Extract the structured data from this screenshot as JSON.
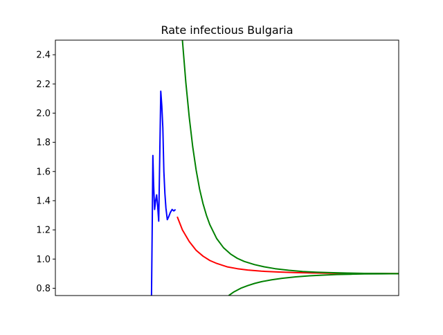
{
  "chart_data": {
    "type": "line",
    "title": "Rate infectious Bulgaria",
    "xlabel": "",
    "ylabel": "",
    "xlim": [
      0,
      100
    ],
    "ylim": [
      0.75,
      2.5
    ],
    "yticks": [
      0.8,
      1.0,
      1.2,
      1.4,
      1.6,
      1.8,
      2.0,
      2.2,
      2.4
    ],
    "ytick_labels": [
      "0.8",
      "1.0",
      "1.2",
      "1.4",
      "1.6",
      "1.8",
      "2.0",
      "2.2",
      "2.4"
    ],
    "xticks_visible": false,
    "grid": false,
    "series": [
      {
        "color": "#0000ff",
        "x": [
          28.0,
          28.2,
          28.4,
          28.6,
          28.9,
          29.2,
          29.5,
          29.8,
          30.1,
          30.4,
          30.7,
          31.0,
          31.3,
          31.6,
          31.9,
          32.2,
          32.6,
          33.0,
          33.5,
          34.0,
          34.5,
          35.0
        ],
        "y": [
          0.75,
          1.2,
          1.71,
          1.52,
          1.34,
          1.4,
          1.44,
          1.36,
          1.26,
          1.7,
          2.15,
          2.05,
          1.9,
          1.6,
          1.45,
          1.35,
          1.27,
          1.29,
          1.32,
          1.34,
          1.33,
          1.34
        ]
      },
      {
        "color": "#ff0000",
        "x": [
          35.5,
          37,
          39,
          41,
          43,
          45,
          47,
          50,
          53,
          56,
          60,
          65,
          70,
          75,
          80,
          85,
          90,
          95,
          100
        ],
        "y": [
          1.29,
          1.2,
          1.12,
          1.06,
          1.02,
          0.99,
          0.97,
          0.947,
          0.934,
          0.925,
          0.917,
          0.911,
          0.907,
          0.905,
          0.903,
          0.902,
          0.901,
          0.901,
          0.9
        ]
      },
      {
        "color": "#008000",
        "x": [
          37.0,
          38,
          39,
          40,
          41,
          42,
          43,
          44,
          45,
          47,
          49,
          51,
          53,
          55,
          58,
          61,
          64,
          68,
          72,
          76,
          80,
          85,
          90,
          95,
          100
        ],
        "y": [
          2.5,
          2.21,
          1.97,
          1.77,
          1.61,
          1.48,
          1.38,
          1.3,
          1.235,
          1.14,
          1.077,
          1.035,
          1.005,
          0.984,
          0.962,
          0.946,
          0.934,
          0.923,
          0.915,
          0.91,
          0.907,
          0.904,
          0.902,
          0.901,
          0.9
        ]
      },
      {
        "color": "#008000",
        "x": [
          50.5,
          52,
          54,
          56,
          58,
          60,
          63,
          66,
          70,
          74,
          78,
          82,
          86,
          90,
          95,
          100
        ],
        "y": [
          0.75,
          0.775,
          0.8,
          0.818,
          0.833,
          0.845,
          0.858,
          0.868,
          0.878,
          0.885,
          0.89,
          0.894,
          0.896,
          0.898,
          0.899,
          0.9
        ]
      }
    ]
  }
}
